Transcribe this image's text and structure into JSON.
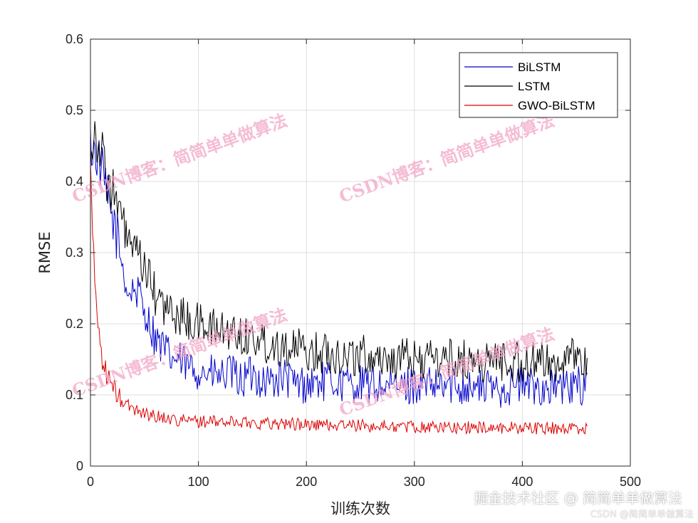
{
  "chart_data": {
    "type": "line",
    "title": "",
    "xlabel": "训练次数",
    "ylabel": "RMSE",
    "xlim": [
      0,
      500
    ],
    "ylim": [
      0,
      0.6
    ],
    "xticks": [
      "0",
      "100",
      "200",
      "300",
      "400",
      "500"
    ],
    "yticks": [
      "0",
      "0.1",
      "0.2",
      "0.3",
      "0.4",
      "0.5",
      "0.6"
    ],
    "grid": true,
    "legend_position": "top-right",
    "series": [
      {
        "name": "BiLSTM",
        "color": "#0000cc",
        "x": [
          0,
          5,
          10,
          15,
          20,
          25,
          30,
          35,
          40,
          45,
          50,
          55,
          60,
          65,
          70,
          75,
          80,
          85,
          90,
          95,
          100,
          110,
          120,
          130,
          140,
          150,
          160,
          170,
          180,
          190,
          200,
          220,
          240,
          260,
          280,
          300,
          320,
          340,
          360,
          380,
          400,
          420,
          440,
          460
        ],
        "values": [
          0.45,
          0.44,
          0.42,
          0.38,
          0.35,
          0.32,
          0.28,
          0.24,
          0.25,
          0.24,
          0.22,
          0.2,
          0.18,
          0.17,
          0.16,
          0.15,
          0.15,
          0.145,
          0.14,
          0.135,
          0.135,
          0.13,
          0.125,
          0.13,
          0.12,
          0.13,
          0.12,
          0.12,
          0.125,
          0.115,
          0.115,
          0.12,
          0.115,
          0.115,
          0.11,
          0.115,
          0.11,
          0.115,
          0.11,
          0.11,
          0.115,
          0.11,
          0.11,
          0.115
        ]
      },
      {
        "name": "LSTM",
        "color": "#000000",
        "x": [
          0,
          5,
          10,
          15,
          20,
          25,
          30,
          35,
          40,
          45,
          50,
          55,
          60,
          65,
          70,
          75,
          80,
          85,
          90,
          95,
          100,
          110,
          120,
          130,
          140,
          150,
          160,
          170,
          180,
          190,
          200,
          220,
          240,
          260,
          280,
          300,
          320,
          340,
          360,
          380,
          400,
          420,
          440,
          460
        ],
        "values": [
          0.45,
          0.47,
          0.44,
          0.41,
          0.39,
          0.36,
          0.34,
          0.32,
          0.3,
          0.29,
          0.28,
          0.26,
          0.24,
          0.23,
          0.22,
          0.215,
          0.21,
          0.21,
          0.205,
          0.2,
          0.2,
          0.195,
          0.19,
          0.19,
          0.185,
          0.18,
          0.175,
          0.17,
          0.17,
          0.165,
          0.16,
          0.16,
          0.155,
          0.155,
          0.15,
          0.15,
          0.15,
          0.15,
          0.145,
          0.15,
          0.145,
          0.145,
          0.15,
          0.15
        ]
      },
      {
        "name": "GWO-BiLSTM",
        "color": "#dd0000",
        "x": [
          0,
          2,
          4,
          6,
          8,
          10,
          12,
          15,
          18,
          20,
          25,
          30,
          35,
          40,
          45,
          50,
          55,
          60,
          70,
          80,
          90,
          100,
          120,
          140,
          160,
          180,
          200,
          220,
          240,
          260,
          280,
          300,
          320,
          340,
          360,
          380,
          400,
          420,
          440,
          460
        ],
        "values": [
          0.43,
          0.33,
          0.26,
          0.22,
          0.19,
          0.16,
          0.14,
          0.13,
          0.12,
          0.11,
          0.1,
          0.09,
          0.085,
          0.08,
          0.078,
          0.075,
          0.072,
          0.07,
          0.068,
          0.065,
          0.064,
          0.063,
          0.062,
          0.062,
          0.06,
          0.06,
          0.058,
          0.058,
          0.057,
          0.056,
          0.056,
          0.055,
          0.055,
          0.054,
          0.054,
          0.054,
          0.054,
          0.053,
          0.053,
          0.053
        ]
      }
    ]
  },
  "watermarks": [
    "CSDN博客：简简单单做算法",
    "CSDN博客：简简单单做算法",
    "CSDN博客：简简单单做算法",
    "CSDN博客：简简单单做算法"
  ],
  "footer": {
    "main": "掘金技术社区 @ 简简单单做算法",
    "sub": "CSDN @简简单单做算法"
  }
}
